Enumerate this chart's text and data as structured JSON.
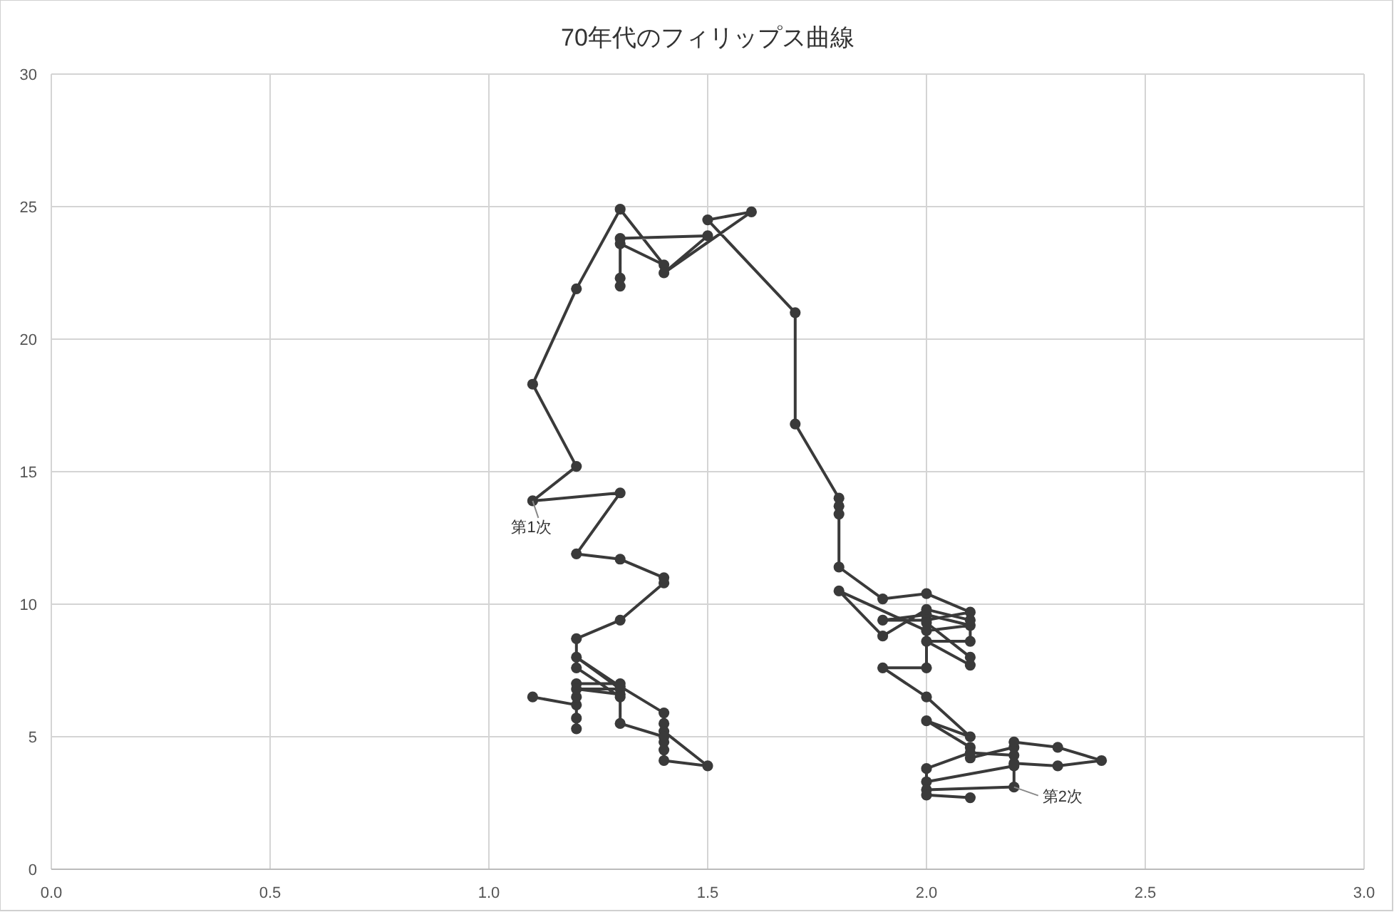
{
  "chart_data": {
    "type": "line",
    "title": "70年代のフィリップス曲線",
    "xlim": [
      0,
      3
    ],
    "xticks": [
      {
        "value": 0,
        "label": "0.0"
      },
      {
        "value": 0.5,
        "label": "0.5"
      },
      {
        "value": 1,
        "label": "1.0"
      },
      {
        "value": 1.5,
        "label": "1.5"
      },
      {
        "value": 2,
        "label": "2.0"
      },
      {
        "value": 2.5,
        "label": "2.5"
      },
      {
        "value": 3,
        "label": "3.0"
      }
    ],
    "ylim": [
      0,
      30
    ],
    "yticks": [
      0,
      5,
      10,
      15,
      20,
      25,
      30
    ],
    "grid": true,
    "marker": "circle",
    "line_style": "solid",
    "series": [
      {
        "color": "#3a3a3a",
        "x": [
          1.1,
          1.2,
          1.2,
          1.2,
          1.2,
          1.2,
          1.3,
          1.3,
          1.2,
          1.3,
          1.2,
          1.3,
          1.4,
          1.4,
          1.4,
          1.5,
          1.4,
          1.4,
          1.4,
          1.4,
          1.3,
          1.3,
          1.2,
          1.2,
          1.3,
          1.4,
          1.4,
          1.3,
          1.2,
          1.3,
          1.1,
          1.2,
          1.1,
          1.2,
          1.3,
          1.4,
          1.3,
          1.3,
          1.3,
          1.3,
          1.5,
          1.4,
          1.6,
          1.5,
          1.7,
          1.7,
          1.8,
          1.8,
          1.8,
          1.8,
          1.9,
          2.0,
          2.1,
          2.0,
          1.9,
          2.0,
          2.1,
          2.0,
          1.8,
          1.9,
          2.0,
          2.1,
          2.1,
          2.0,
          2.1,
          2.1,
          2.0,
          2.0,
          1.9,
          2.0,
          2.1,
          2.0,
          2.1,
          2.1,
          2.2,
          2.2,
          2.3,
          2.4,
          2.3,
          2.2,
          2.2,
          2.1,
          2.0,
          2.0,
          2.2,
          2.2,
          2.0,
          2.0,
          2.1
        ],
        "values": [
          6.5,
          6.2,
          5.7,
          5.3,
          6.5,
          7.0,
          7.0,
          6.6,
          6.8,
          6.8,
          8.0,
          6.9,
          5.9,
          5.5,
          5.2,
          3.9,
          4.1,
          4.5,
          4.8,
          5.0,
          5.5,
          6.5,
          7.6,
          8.7,
          9.4,
          10.8,
          11.0,
          11.7,
          11.9,
          14.2,
          13.9,
          15.2,
          18.3,
          21.9,
          24.9,
          22.8,
          23.6,
          22.3,
          22.0,
          23.8,
          23.9,
          22.5,
          24.8,
          24.5,
          21.0,
          16.8,
          14.0,
          13.7,
          13.4,
          11.4,
          10.2,
          10.4,
          9.7,
          9.4,
          9.4,
          9.6,
          9.2,
          9.0,
          10.5,
          8.8,
          9.8,
          9.4,
          8.6,
          8.6,
          7.7,
          8.0,
          9.3,
          7.6,
          7.6,
          6.5,
          5.0,
          5.6,
          4.6,
          4.2,
          4.6,
          4.8,
          4.6,
          4.1,
          3.9,
          4.0,
          4.3,
          4.4,
          3.8,
          3.3,
          3.9,
          3.1,
          3.0,
          2.8,
          2.7
        ]
      }
    ],
    "annotations": [
      {
        "text": "第1次",
        "x": 1.1,
        "y": 13.9
      },
      {
        "text": "第2次",
        "x": 2.2,
        "y": 3.1
      }
    ]
  }
}
